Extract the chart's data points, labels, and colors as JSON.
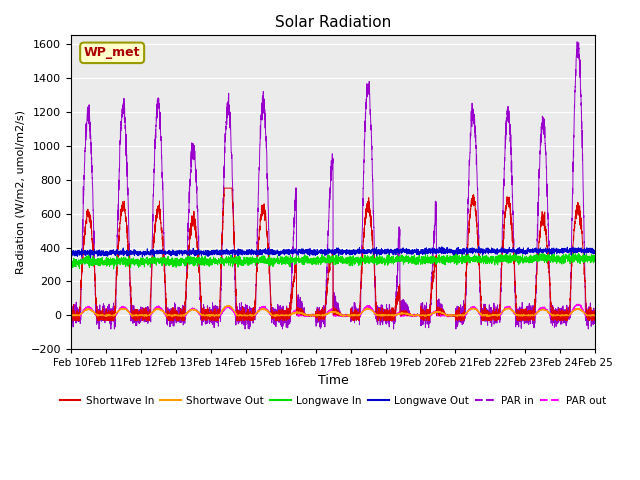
{
  "title": "Solar Radiation",
  "ylabel": "Radiation (W/m2, umol/m2/s)",
  "xlabel": "Time",
  "ylim": [
    -200,
    1650
  ],
  "yticks": [
    -200,
    0,
    200,
    400,
    600,
    800,
    1000,
    1200,
    1400,
    1600
  ],
  "date_labels": [
    "Feb 10",
    "Feb 11",
    "Feb 12",
    "Feb 13",
    "Feb 14",
    "Feb 15",
    "Feb 16",
    "Feb 17",
    "Feb 18",
    "Feb 19",
    "Feb 20",
    "Feb 21",
    "Feb 22",
    "Feb 23",
    "Feb 24",
    "Feb 25"
  ],
  "legend_label": "WP_met",
  "series": {
    "shortwave_in": {
      "color": "#dd0000",
      "label": "Shortwave In"
    },
    "shortwave_out": {
      "color": "#ff9900",
      "label": "Shortwave Out"
    },
    "longwave_in": {
      "color": "#00dd00",
      "label": "Longwave In"
    },
    "longwave_out": {
      "color": "#0000cc",
      "label": "Longwave Out"
    },
    "par_in": {
      "color": "#9900cc",
      "label": "PAR in"
    },
    "par_out": {
      "color": "#ff00ff",
      "label": "PAR out"
    }
  },
  "plot_bg_color": "#ebebeb",
  "grid_color": "#ffffff",
  "wp_met_fg": "#aa0000",
  "wp_met_bg": "#ffffcc",
  "wp_met_edge": "#999900"
}
